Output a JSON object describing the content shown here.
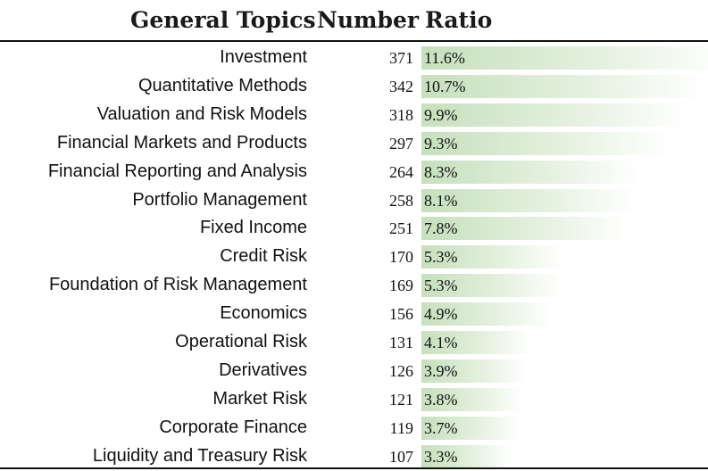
{
  "header": {
    "col_topic": "General Topics",
    "col_number": "Number",
    "col_ratio": "Ratio"
  },
  "chart_data": {
    "type": "table",
    "columns": [
      "General Topics",
      "Number",
      "Ratio"
    ],
    "bar_color": "#c6e0bc",
    "rows": [
      {
        "topic": "Investment",
        "number": 371,
        "ratio": "11.6%"
      },
      {
        "topic": "Quantitative Methods",
        "number": 342,
        "ratio": "10.7%"
      },
      {
        "topic": "Valuation and Risk Models",
        "number": 318,
        "ratio": "9.9%"
      },
      {
        "topic": "Financial Markets and Products",
        "number": 297,
        "ratio": "9.3%"
      },
      {
        "topic": "Financial Reporting and Analysis",
        "number": 264,
        "ratio": "8.3%"
      },
      {
        "topic": "Portfolio Management",
        "number": 258,
        "ratio": "8.1%"
      },
      {
        "topic": "Fixed Income",
        "number": 251,
        "ratio": "7.8%"
      },
      {
        "topic": "Credit Risk",
        "number": 170,
        "ratio": "5.3%"
      },
      {
        "topic": "Foundation of Risk Management",
        "number": 169,
        "ratio": "5.3%"
      },
      {
        "topic": "Economics",
        "number": 156,
        "ratio": "4.9%"
      },
      {
        "topic": "Operational Risk",
        "number": 131,
        "ratio": "4.1%"
      },
      {
        "topic": "Derivatives",
        "number": 126,
        "ratio": "3.9%"
      },
      {
        "topic": "Market Risk",
        "number": 121,
        "ratio": "3.8%"
      },
      {
        "topic": "Corporate Finance",
        "number": 119,
        "ratio": "3.7%"
      },
      {
        "topic": "Liquidity and Treasury Risk",
        "number": 107,
        "ratio": "3.3%"
      }
    ]
  }
}
